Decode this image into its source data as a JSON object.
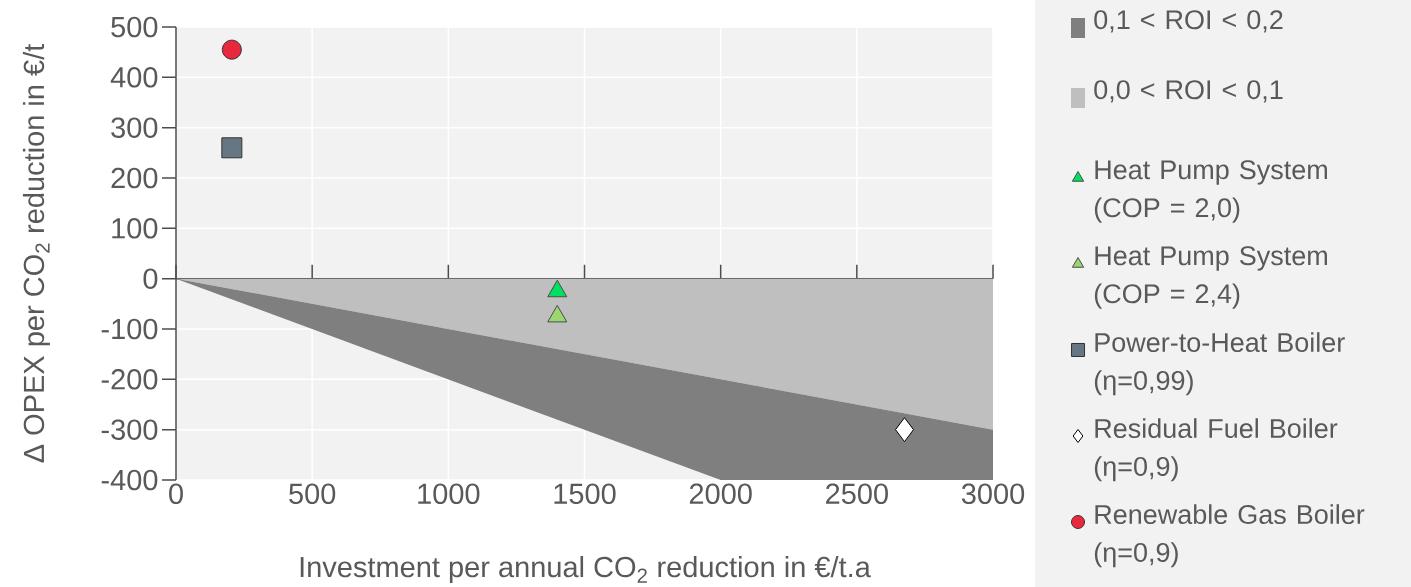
{
  "chart_data": {
    "type": "scatter",
    "xlabel": "Investment per annual CO$_{2}$ reduction in €/t.a",
    "ylabel": "Δ OPEX per CO$_{2}$ reduction in €/t",
    "xlim": [
      0,
      3000
    ],
    "ylim": [
      -400,
      500
    ],
    "xticks": [
      0,
      500,
      1000,
      1500,
      2000,
      2500,
      3000
    ],
    "yticks": [
      -400,
      -300,
      -200,
      -100,
      0,
      100,
      200,
      300,
      400,
      500
    ],
    "grid": true,
    "legend": "right",
    "stacked": true,
    "series": [
      {
        "name": "0,0 < ROI < 0,1",
        "type": "area",
        "color": "#bfbfbf",
        "x": [
          0,
          2000,
          3000
        ],
        "values": [
          0,
          -200,
          -300
        ]
      },
      {
        "name": "0,1 < ROI < 0,2",
        "type": "area",
        "color": "#7f7f7f",
        "x": [
          0,
          2000,
          3000
        ],
        "values": [
          0,
          -200,
          -100
        ]
      },
      {
        "name": "Heat Pump System (COP = 2,0)",
        "marker": "triangle",
        "color": "#00e060",
        "x": [
          1400
        ],
        "values": [
          -25
        ]
      },
      {
        "name": "Heat Pump System (COP = 2,4)",
        "marker": "triangle",
        "color": "#9bd66e",
        "x": [
          1400
        ],
        "values": [
          -75
        ]
      },
      {
        "name": "Power-to-Heat Boiler (η=0,99)",
        "marker": "square",
        "color": "#677683",
        "x": [
          205
        ],
        "values": [
          260
        ]
      },
      {
        "name": "Residual Fuel Boiler (η=0,9)",
        "marker": "diamond",
        "color": "#ffffff",
        "x": [
          2675
        ],
        "values": [
          -300
        ]
      },
      {
        "name": "Renewable Gas Boiler (η=0,9)",
        "marker": "circle",
        "color": "#e8283c",
        "x": [
          205
        ],
        "values": [
          455
        ]
      }
    ]
  }
}
